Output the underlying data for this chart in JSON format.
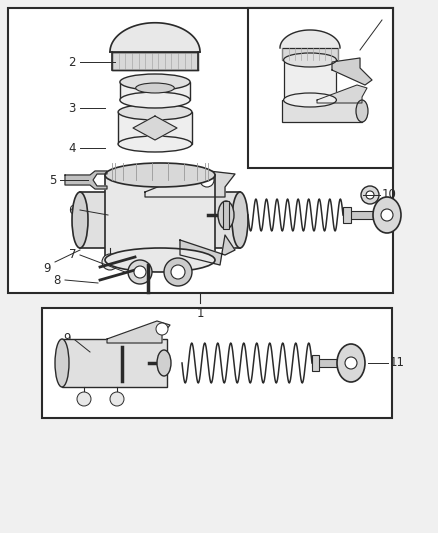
{
  "bg_color": "#f0f0f0",
  "line_color": "#2a2a2a",
  "white": "#ffffff",
  "light_gray": "#e8e8e8",
  "mid_gray": "#cccccc",
  "fig_width": 4.38,
  "fig_height": 5.33,
  "dpi": 100
}
